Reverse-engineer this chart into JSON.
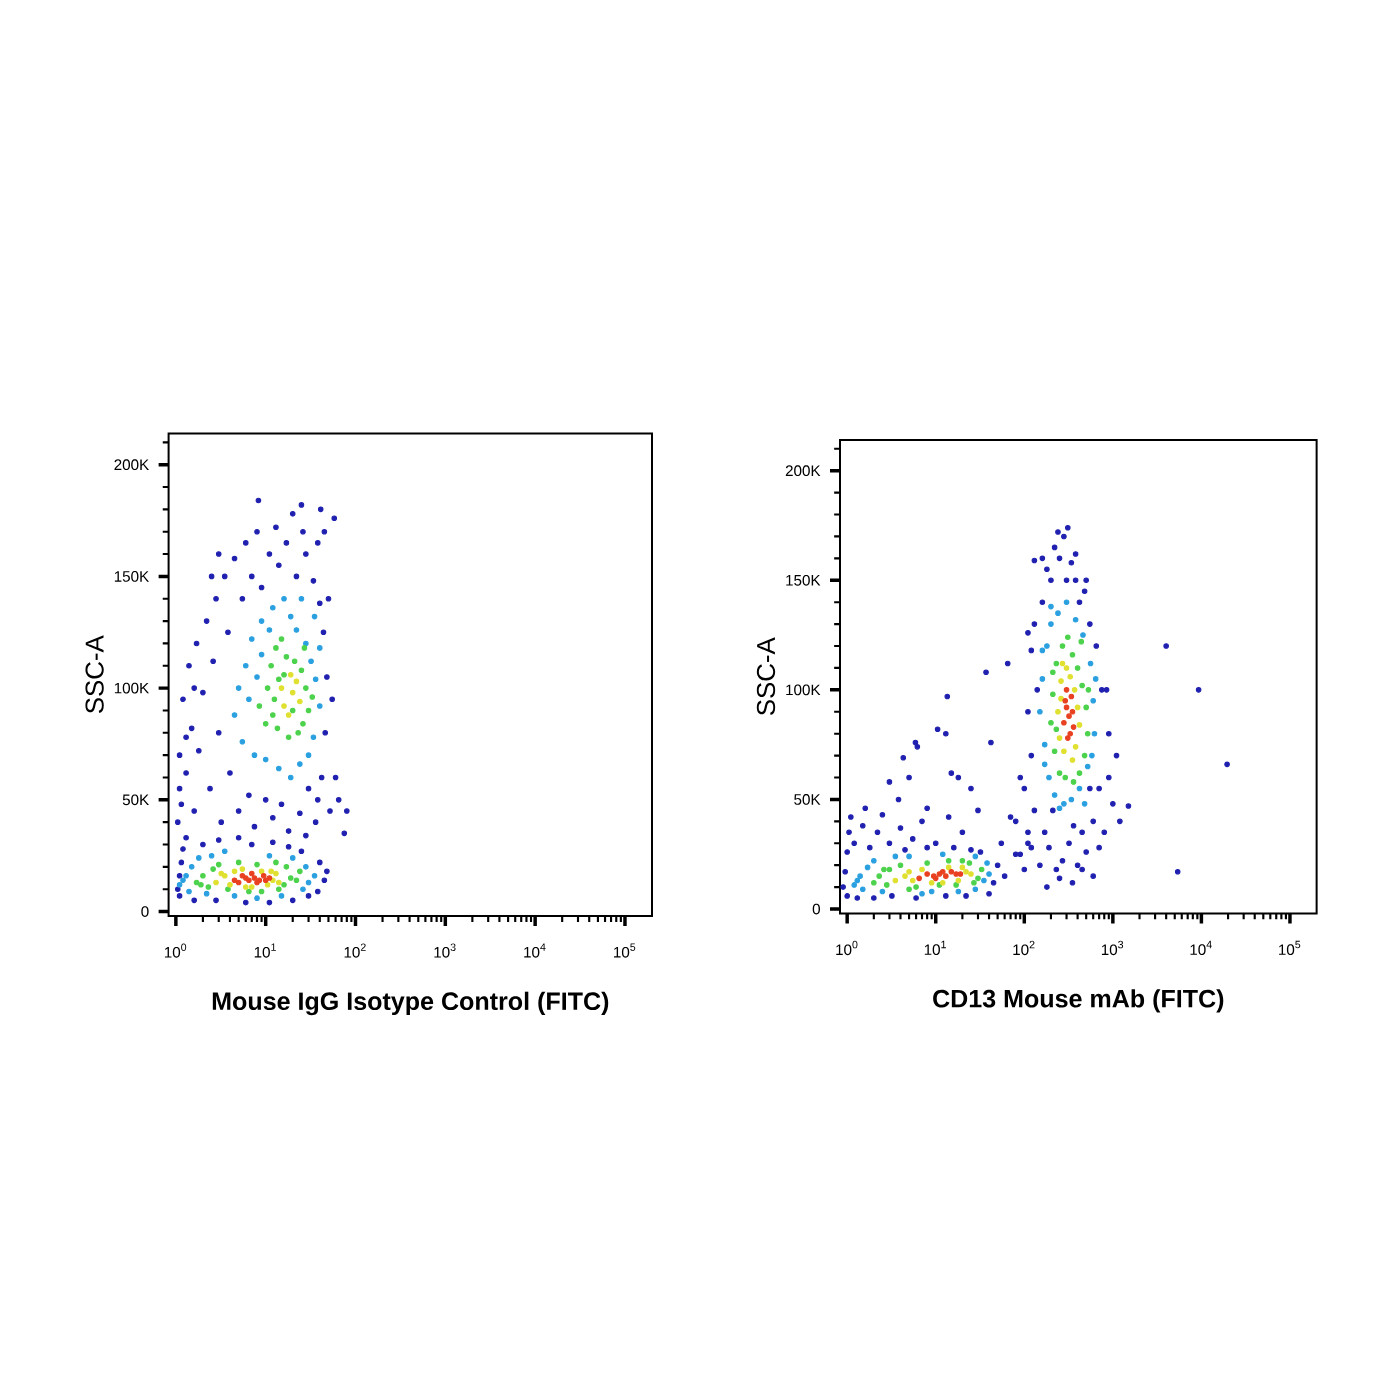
{
  "chart_data": [
    {
      "type": "scatter",
      "xlabel": "Mouse IgG Isotype Control (FITC)",
      "ylabel": "SSC-A",
      "log": "x",
      "marker": "circle",
      "xlim": [
        0.83,
        200000
      ],
      "ylim": [
        -2000,
        214000
      ],
      "xticks": [
        {
          "value": 1,
          "label": "10$^{0}$"
        },
        {
          "value": 10,
          "label": "10$^{1}$"
        },
        {
          "value": 100,
          "label": "10$^{2}$"
        },
        {
          "value": 1000,
          "label": "10$^{3}$"
        },
        {
          "value": 10000,
          "label": "10$^{4}$"
        },
        {
          "value": 100000,
          "label": "10$^{5}$"
        },
        {
          "value": 2,
          "label": null
        },
        {
          "value": 3,
          "label": null
        },
        {
          "value": 4,
          "label": null
        },
        {
          "value": 5,
          "label": null
        },
        {
          "value": 6,
          "label": null
        },
        {
          "value": 7,
          "label": null
        },
        {
          "value": 8,
          "label": null
        },
        {
          "value": 9,
          "label": null
        },
        {
          "value": 20,
          "label": null
        },
        {
          "value": 30,
          "label": null
        },
        {
          "value": 40,
          "label": null
        },
        {
          "value": 50,
          "label": null
        },
        {
          "value": 60,
          "label": null
        },
        {
          "value": 70,
          "label": null
        },
        {
          "value": 80,
          "label": null
        },
        {
          "value": 90,
          "label": null
        },
        {
          "value": 200,
          "label": null
        },
        {
          "value": 300,
          "label": null
        },
        {
          "value": 400,
          "label": null
        },
        {
          "value": 500,
          "label": null
        },
        {
          "value": 600,
          "label": null
        },
        {
          "value": 700,
          "label": null
        },
        {
          "value": 800,
          "label": null
        },
        {
          "value": 900,
          "label": null
        },
        {
          "value": 2000,
          "label": null
        },
        {
          "value": 3000,
          "label": null
        },
        {
          "value": 4000,
          "label": null
        },
        {
          "value": 5000,
          "label": null
        },
        {
          "value": 6000,
          "label": null
        },
        {
          "value": 7000,
          "label": null
        },
        {
          "value": 8000,
          "label": null
        },
        {
          "value": 9000,
          "label": null
        },
        {
          "value": 20000,
          "label": null
        },
        {
          "value": 30000,
          "label": null
        },
        {
          "value": 40000,
          "label": null
        },
        {
          "value": 50000,
          "label": null
        },
        {
          "value": 60000,
          "label": null
        },
        {
          "value": 70000,
          "label": null
        },
        {
          "value": 80000,
          "label": null
        },
        {
          "value": 90000,
          "label": null
        }
      ],
      "yticks": [
        0,
        {
          "value": 50000,
          "label": "50K"
        },
        {
          "value": 100000,
          "label": "100K"
        },
        {
          "value": 150000,
          "label": "150K"
        },
        {
          "value": 200000,
          "label": "200K"
        },
        {
          "value": 10000,
          "label": null
        },
        {
          "value": 20000,
          "label": null
        },
        {
          "value": 30000,
          "label": null
        },
        {
          "value": 40000,
          "label": null
        },
        {
          "value": 60000,
          "label": null
        },
        {
          "value": 70000,
          "label": null
        },
        {
          "value": 80000,
          "label": null
        },
        {
          "value": 90000,
          "label": null
        },
        {
          "value": 110000,
          "label": null
        },
        {
          "value": 120000,
          "label": null
        },
        {
          "value": 130000,
          "label": null
        },
        {
          "value": 140000,
          "label": null
        },
        {
          "value": 160000,
          "label": null
        },
        {
          "value": 170000,
          "label": null
        },
        {
          "value": 180000,
          "label": null
        },
        {
          "value": 190000,
          "label": null
        },
        {
          "value": 210000,
          "label": null
        }
      ],
      "series": [
        {
          "color": "#2020b0",
          "x": [
            1.05,
            1.1,
            1.15,
            1.1,
            1.2,
            1.3,
            1.6,
            2,
            3,
            2.8,
            5,
            7,
            12,
            18,
            25,
            40,
            45,
            38,
            30,
            48,
            20,
            11,
            6,
            1.05,
            1.1,
            1.1,
            1.15,
            1.2,
            1.3,
            1.4,
            1.5,
            1.6,
            1.7,
            1.8,
            2,
            2.2,
            2.4,
            2.6,
            2.8,
            3,
            3.2,
            3.5,
            3.8,
            4,
            4.5,
            5,
            5.5,
            6,
            6.5,
            7,
            7.5,
            8,
            9,
            10,
            11,
            12,
            13,
            14,
            15,
            17,
            18,
            20,
            22,
            24,
            26,
            28,
            30,
            41,
            34,
            36,
            38,
            40,
            42,
            44,
            46,
            48,
            50,
            55,
            60,
            65,
            45,
            58,
            25,
            8.3,
            3,
            2.5,
            1.6,
            1.3,
            38,
            28,
            52,
            80,
            75
          ],
          "values": [
            10000,
            16000,
            22000,
            7000,
            28000,
            33000,
            5000,
            30000,
            32000,
            5000,
            33000,
            30000,
            31000,
            29000,
            27000,
            22000,
            14000,
            9000,
            7000,
            18000,
            5000,
            4000,
            4000,
            40000,
            55000,
            70000,
            48000,
            95000,
            62000,
            110000,
            82000,
            45000,
            120000,
            72000,
            98000,
            130000,
            55000,
            112000,
            140000,
            80000,
            40000,
            150000,
            125000,
            62000,
            158000,
            45000,
            140000,
            165000,
            52000,
            150000,
            38000,
            170000,
            145000,
            50000,
            160000,
            42000,
            172000,
            155000,
            48000,
            165000,
            36000,
            178000,
            150000,
            44000,
            170000,
            160000,
            55000,
            180000,
            148000,
            40000,
            165000,
            138000,
            60000,
            125000,
            80000,
            105000,
            140000,
            95000,
            60000,
            50000,
            170000,
            176000,
            182000,
            184000,
            160000,
            150000,
            100000,
            78000,
            50000,
            34000,
            45000,
            45000,
            35000
          ]
        },
        {
          "color": "#2aa0e0",
          "x": [
            1.1,
            1.3,
            1.4,
            1.5,
            1.8,
            2.2,
            2.5,
            3.5,
            30,
            35,
            28,
            26,
            20,
            11,
            4.5,
            8,
            15,
            1.2,
            4.5,
            5,
            5.5,
            6,
            6.5,
            7,
            7.5,
            8,
            9,
            10,
            11,
            12,
            14,
            16,
            19,
            22,
            25,
            28,
            32,
            36,
            40,
            34,
            30,
            24,
            19,
            9,
            40,
            35
          ],
          "values": [
            12000,
            16000,
            9000,
            20000,
            24000,
            8000,
            25000,
            27000,
            13000,
            16000,
            20000,
            10000,
            24000,
            25000,
            7000,
            6000,
            7000,
            14000,
            88000,
            100000,
            76000,
            110000,
            95000,
            122000,
            70000,
            105000,
            130000,
            68000,
            126000,
            136000,
            64000,
            140000,
            132000,
            126000,
            140000,
            120000,
            112000,
            104000,
            92000,
            78000,
            70000,
            66000,
            60000,
            115000,
            118000,
            132000
          ]
        },
        {
          "color": "#4cd24c",
          "x": [
            1.7,
            2,
            2.3,
            2.6,
            3,
            16,
            19,
            22,
            17,
            13,
            8,
            5,
            3.8,
            9,
            14,
            1.9,
            24,
            6.5,
            8.5,
            10,
            10.5,
            11.5,
            12.5,
            13,
            13.5,
            14,
            17,
            21,
            25,
            28,
            30,
            26,
            23,
            18,
            15,
            33,
            27,
            20,
            12,
            16
          ],
          "values": [
            13000,
            16000,
            11000,
            19000,
            21000,
            12000,
            15000,
            14000,
            20000,
            22000,
            21000,
            22000,
            10000,
            9000,
            10000,
            12000,
            18000,
            9000,
            92000,
            84000,
            100000,
            110000,
            95000,
            118000,
            82000,
            104000,
            114000,
            112000,
            108000,
            100000,
            90000,
            84000,
            80000,
            78000,
            122000,
            96000,
            118000,
            90000,
            88000,
            106000
          ]
        },
        {
          "color": "#e0e030",
          "x": [
            2.8,
            3.5,
            4,
            12,
            13,
            9,
            5.5,
            7,
            14,
            3.2,
            10.5,
            6,
            11.5,
            4.5,
            16,
            20,
            18,
            22,
            15,
            24,
            19
          ],
          "values": [
            13000,
            16000,
            12000,
            14000,
            17000,
            18000,
            19000,
            11000,
            13000,
            17000,
            12000,
            11000,
            18000,
            18000,
            92000,
            98000,
            88000,
            103000,
            100000,
            94000,
            106000
          ]
        },
        {
          "color": "#e84020",
          "x": [
            4.5,
            5.5,
            6.5,
            7.5,
            8.5,
            9.5,
            5,
            7,
            10,
            6,
            11,
            8
          ],
          "values": [
            14000,
            16000,
            14000,
            15000,
            14000,
            16000,
            13000,
            17000,
            14000,
            15000,
            15000,
            13000
          ]
        }
      ]
    },
    {
      "type": "scatter",
      "xlabel": "CD13 Mouse mAb (FITC)",
      "ylabel": "SSC-A",
      "log": "x",
      "marker": "circle",
      "xlim": [
        0.83,
        200000
      ],
      "ylim": [
        -2000,
        214000
      ],
      "xticks": [
        {
          "value": 1,
          "label": "10$^{0}$"
        },
        {
          "value": 10,
          "label": "10$^{1}$"
        },
        {
          "value": 100,
          "label": "10$^{2}$"
        },
        {
          "value": 1000,
          "label": "10$^{3}$"
        },
        {
          "value": 10000,
          "label": "10$^{4}$"
        },
        {
          "value": 100000,
          "label": "10$^{5}$"
        },
        {
          "value": 2,
          "label": null
        },
        {
          "value": 3,
          "label": null
        },
        {
          "value": 4,
          "label": null
        },
        {
          "value": 5,
          "label": null
        },
        {
          "value": 6,
          "label": null
        },
        {
          "value": 7,
          "label": null
        },
        {
          "value": 8,
          "label": null
        },
        {
          "value": 9,
          "label": null
        },
        {
          "value": 20,
          "label": null
        },
        {
          "value": 30,
          "label": null
        },
        {
          "value": 40,
          "label": null
        },
        {
          "value": 50,
          "label": null
        },
        {
          "value": 60,
          "label": null
        },
        {
          "value": 70,
          "label": null
        },
        {
          "value": 80,
          "label": null
        },
        {
          "value": 90,
          "label": null
        },
        {
          "value": 200,
          "label": null
        },
        {
          "value": 300,
          "label": null
        },
        {
          "value": 400,
          "label": null
        },
        {
          "value": 500,
          "label": null
        },
        {
          "value": 600,
          "label": null
        },
        {
          "value": 700,
          "label": null
        },
        {
          "value": 800,
          "label": null
        },
        {
          "value": 900,
          "label": null
        },
        {
          "value": 2000,
          "label": null
        },
        {
          "value": 3000,
          "label": null
        },
        {
          "value": 4000,
          "label": null
        },
        {
          "value": 5000,
          "label": null
        },
        {
          "value": 6000,
          "label": null
        },
        {
          "value": 7000,
          "label": null
        },
        {
          "value": 8000,
          "label": null
        },
        {
          "value": 9000,
          "label": null
        },
        {
          "value": 20000,
          "label": null
        },
        {
          "value": 30000,
          "label": null
        },
        {
          "value": 40000,
          "label": null
        },
        {
          "value": 50000,
          "label": null
        },
        {
          "value": 60000,
          "label": null
        },
        {
          "value": 70000,
          "label": null
        },
        {
          "value": 80000,
          "label": null
        },
        {
          "value": 90000,
          "label": null
        }
      ],
      "yticks": [
        0,
        {
          "value": 50000,
          "label": "50K"
        },
        {
          "value": 100000,
          "label": "100K"
        },
        {
          "value": 150000,
          "label": "150K"
        },
        {
          "value": 200000,
          "label": "200K"
        },
        {
          "value": 10000,
          "label": null
        },
        {
          "value": 20000,
          "label": null
        },
        {
          "value": 30000,
          "label": null
        },
        {
          "value": 40000,
          "label": null
        },
        {
          "value": 60000,
          "label": null
        },
        {
          "value": 70000,
          "label": null
        },
        {
          "value": 80000,
          "label": null
        },
        {
          "value": 90000,
          "label": null
        },
        {
          "value": 110000,
          "label": null
        },
        {
          "value": 120000,
          "label": null
        },
        {
          "value": 130000,
          "label": null
        },
        {
          "value": 140000,
          "label": null
        },
        {
          "value": 160000,
          "label": null
        },
        {
          "value": 170000,
          "label": null
        },
        {
          "value": 180000,
          "label": null
        },
        {
          "value": 190000,
          "label": null
        },
        {
          "value": 210000,
          "label": null
        }
      ],
      "series": [
        {
          "color": "#2020b0",
          "x": [
            0.9,
            0.95,
            1,
            1.05,
            1,
            1.1,
            1.2,
            1.3,
            1.5,
            1.6,
            1.8,
            2,
            2.2,
            2.5,
            3,
            3.2,
            4,
            4.5,
            5.5,
            6,
            7,
            8,
            10,
            13,
            16,
            22,
            25,
            32,
            40,
            45,
            50,
            60,
            8,
            14,
            3.8,
            10.5,
            13.5,
            6.2,
            37,
            4.3,
            5.9,
            13,
            18,
            65,
            110,
            130,
            42,
            5,
            3,
            20,
            30,
            55,
            70,
            80,
            90,
            100,
            110,
            120,
            25,
            15,
            80,
            90,
            100,
            110,
            120,
            130,
            140,
            150,
            160,
            170,
            180,
            190,
            200,
            210,
            220,
            230,
            250,
            270,
            280,
            300,
            320,
            340,
            360,
            380,
            400,
            420,
            450,
            480,
            500,
            550,
            600,
            650,
            700,
            750,
            800,
            900,
            900,
            1000,
            1100,
            700,
            600,
            160,
            240,
            310,
            380,
            120,
            110,
            130,
            500,
            550,
            450,
            350,
            250,
            180,
            1200,
            850,
            4000,
            9300,
            19500,
            5400,
            1500
          ],
          "values": [
            10000,
            17000,
            26000,
            35000,
            6000,
            42000,
            30000,
            5000,
            38000,
            46000,
            28000,
            5000,
            35000,
            43000,
            30000,
            6000,
            37000,
            27000,
            32000,
            5000,
            40000,
            28000,
            30000,
            6000,
            28000,
            6000,
            27000,
            26000,
            7000,
            12000,
            20000,
            15000,
            46000,
            42000,
            50000,
            82000,
            97000,
            74000,
            108000,
            69000,
            76000,
            80000,
            60000,
            112000,
            126000,
            159000,
            76000,
            60000,
            58000,
            35000,
            45000,
            30000,
            42000,
            25000,
            60000,
            18000,
            35000,
            28000,
            55000,
            62000,
            40000,
            25000,
            55000,
            30000,
            70000,
            45000,
            100000,
            20000,
            140000,
            35000,
            155000,
            28000,
            150000,
            45000,
            165000,
            18000,
            160000,
            22000,
            170000,
            150000,
            30000,
            158000,
            38000,
            150000,
            20000,
            140000,
            35000,
            145000,
            26000,
            130000,
            40000,
            120000,
            55000,
            100000,
            35000,
            80000,
            60000,
            48000,
            70000,
            28000,
            15000,
            160000,
            172000,
            174000,
            162000,
            118000,
            90000,
            130000,
            150000,
            55000,
            18000,
            12000,
            14000,
            10000,
            40000,
            100000,
            120000,
            100000,
            66000,
            17000,
            47000
          ]
        },
        {
          "color": "#2aa0e0",
          "x": [
            1.2,
            1.4,
            1.5,
            1.7,
            2,
            2.5,
            3.5,
            5,
            9,
            12,
            18,
            28,
            35,
            40,
            38,
            28,
            7,
            1.3,
            150,
            160,
            170,
            180,
            190,
            200,
            220,
            240,
            280,
            300,
            340,
            380,
            420,
            460,
            520,
            560,
            600,
            620,
            580,
            160,
            170,
            640,
            480,
            250,
            200
          ],
          "values": [
            11000,
            15000,
            9000,
            19000,
            22000,
            8000,
            24000,
            24000,
            8000,
            25000,
            8000,
            9000,
            13000,
            16000,
            21000,
            24000,
            7000,
            13000,
            90000,
            105000,
            75000,
            120000,
            60000,
            130000,
            52000,
            135000,
            48000,
            140000,
            50000,
            132000,
            55000,
            125000,
            65000,
            112000,
            95000,
            80000,
            70000,
            118000,
            66000,
            105000,
            48000,
            46000,
            138000
          ]
        },
        {
          "color": "#4cd24c",
          "x": [
            2,
            2.3,
            2.8,
            3,
            4,
            6,
            8,
            11,
            14,
            17,
            24,
            30,
            33,
            27,
            2.6,
            20,
            5,
            200,
            210,
            220,
            230,
            250,
            270,
            290,
            310,
            350,
            400,
            450,
            500,
            520,
            480,
            420,
            360,
            230,
            440,
            210,
            530
          ],
          "values": [
            12000,
            15000,
            11000,
            18000,
            20000,
            10000,
            21000,
            11000,
            22000,
            11000,
            21000,
            14000,
            18000,
            12000,
            18000,
            22000,
            9000,
            85000,
            98000,
            72000,
            112000,
            62000,
            120000,
            60000,
            124000,
            116000,
            110000,
            102000,
            92000,
            80000,
            70000,
            62000,
            58000,
            82000,
            122000,
            108000,
            100000
          ]
        },
        {
          "color": "#e0e030",
          "x": [
            3.5,
            4.5,
            5.5,
            7,
            9,
            14,
            18,
            22,
            25,
            5,
            12,
            20,
            240,
            250,
            260,
            280,
            300,
            330,
            370,
            400,
            420,
            380,
            260,
            350,
            270
          ],
          "values": [
            13000,
            15000,
            13000,
            18000,
            12000,
            19000,
            13000,
            17000,
            16000,
            17000,
            12000,
            19000,
            90000,
            78000,
            104000,
            72000,
            110000,
            106000,
            100000,
            92000,
            84000,
            74000,
            96000,
            68000,
            112000
          ]
        },
        {
          "color": "#e84020",
          "x": [
            6.5,
            8,
            9.5,
            11,
            13,
            15,
            17,
            10,
            12,
            19,
            280,
            300,
            320,
            340,
            360,
            300,
            330,
            290,
            350,
            310
          ],
          "values": [
            14000,
            16000,
            15000,
            16000,
            15000,
            17000,
            16000,
            14000,
            17000,
            16000,
            85000,
            92000,
            88000,
            97000,
            83000,
            100000,
            80000,
            95000,
            90000,
            78000
          ]
        }
      ]
    }
  ]
}
